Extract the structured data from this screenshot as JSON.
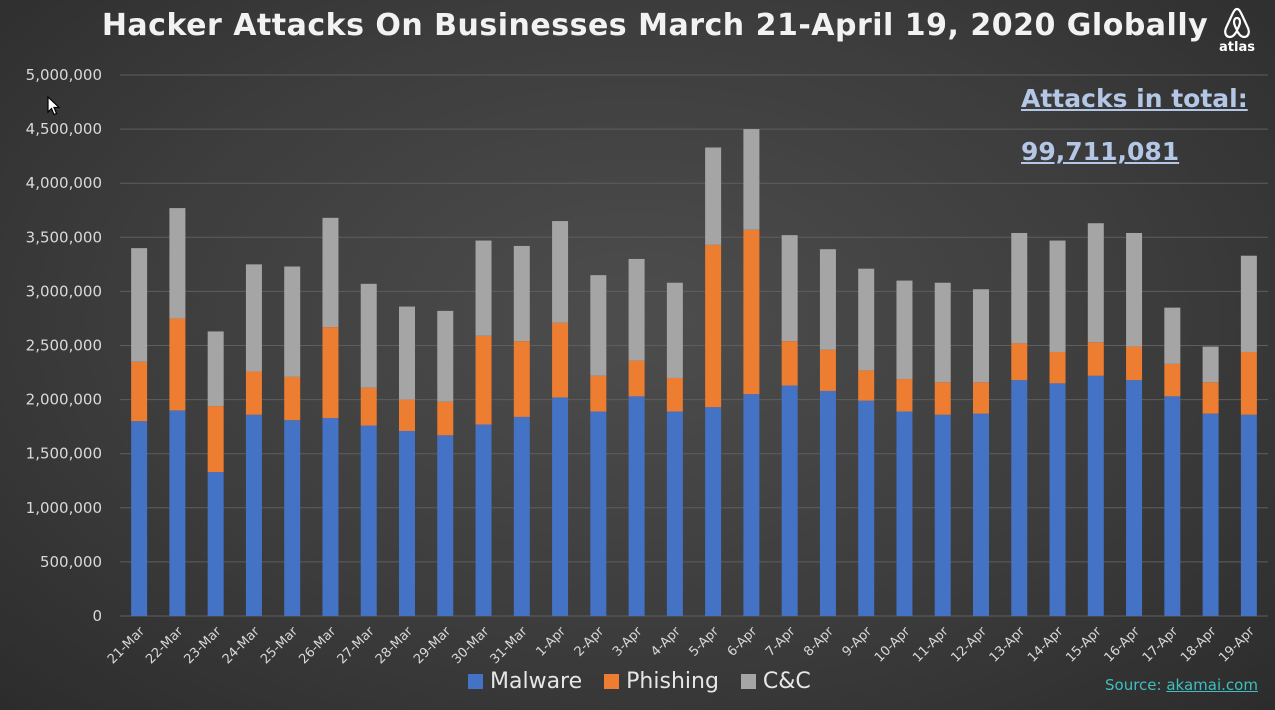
{
  "chart_data": {
    "type": "bar",
    "stacked": true,
    "title": "Hacker Attacks On Businesses March 21-April 19, 2020 Globally",
    "xlabel": "",
    "ylabel": "",
    "ylim": [
      0,
      5000000
    ],
    "yticks": [
      0,
      500000,
      1000000,
      1500000,
      2000000,
      2500000,
      3000000,
      3500000,
      4000000,
      4500000,
      5000000
    ],
    "ytick_labels": [
      "0",
      "500,000",
      "1,000,000",
      "1,500,000",
      "2,000,000",
      "2,500,000",
      "3,000,000",
      "3,500,000",
      "4,000,000",
      "4,500,000",
      "5,000,000"
    ],
    "grid": true,
    "legend_position": "bottom",
    "categories": [
      "21-Mar",
      "22-Mar",
      "23-Mar",
      "24-Mar",
      "25-Mar",
      "26-Mar",
      "27-Mar",
      "28-Mar",
      "29-Mar",
      "30-Mar",
      "31-Mar",
      "1-Apr",
      "2-Apr",
      "3-Apr",
      "4-Apr",
      "5-Apr",
      "6-Apr",
      "7-Apr",
      "8-Apr",
      "9-Apr",
      "10-Apr",
      "11-Apr",
      "12-Apr",
      "13-Apr",
      "14-Apr",
      "15-Apr",
      "16-Apr",
      "17-Apr",
      "18-Apr",
      "19-Apr"
    ],
    "series": [
      {
        "name": "Malware",
        "color": "#4472c4",
        "values": [
          1800000,
          1900000,
          1330000,
          1860000,
          1810000,
          1830000,
          1760000,
          1710000,
          1670000,
          1770000,
          1840000,
          2020000,
          1890000,
          2030000,
          1890000,
          1930000,
          2050000,
          2130000,
          2080000,
          1990000,
          1890000,
          1860000,
          1870000,
          2180000,
          2150000,
          2220000,
          2180000,
          2030000,
          1870000,
          1860000
        ]
      },
      {
        "name": "Phishing",
        "color": "#ed7d31",
        "values": [
          550000,
          850000,
          610000,
          400000,
          400000,
          840000,
          350000,
          290000,
          310000,
          820000,
          700000,
          690000,
          330000,
          330000,
          310000,
          1500000,
          1520000,
          410000,
          380000,
          280000,
          300000,
          300000,
          290000,
          340000,
          290000,
          310000,
          310000,
          300000,
          290000,
          580000
        ]
      },
      {
        "name": "C&C",
        "color": "#a5a5a5",
        "values": [
          1050000,
          1020000,
          690000,
          990000,
          1020000,
          1010000,
          960000,
          860000,
          840000,
          880000,
          880000,
          940000,
          930000,
          940000,
          880000,
          900000,
          930000,
          980000,
          930000,
          940000,
          910000,
          920000,
          860000,
          1020000,
          1030000,
          1100000,
          1050000,
          520000,
          330000,
          890000
        ]
      }
    ]
  },
  "annotation": {
    "total_label": "Attacks in total:",
    "total_value": "99,711,081"
  },
  "source": {
    "prefix": "Source: ",
    "link": "akamai.com"
  },
  "logo": {
    "icon": "airbnb-belo-icon",
    "text": "atlas"
  }
}
